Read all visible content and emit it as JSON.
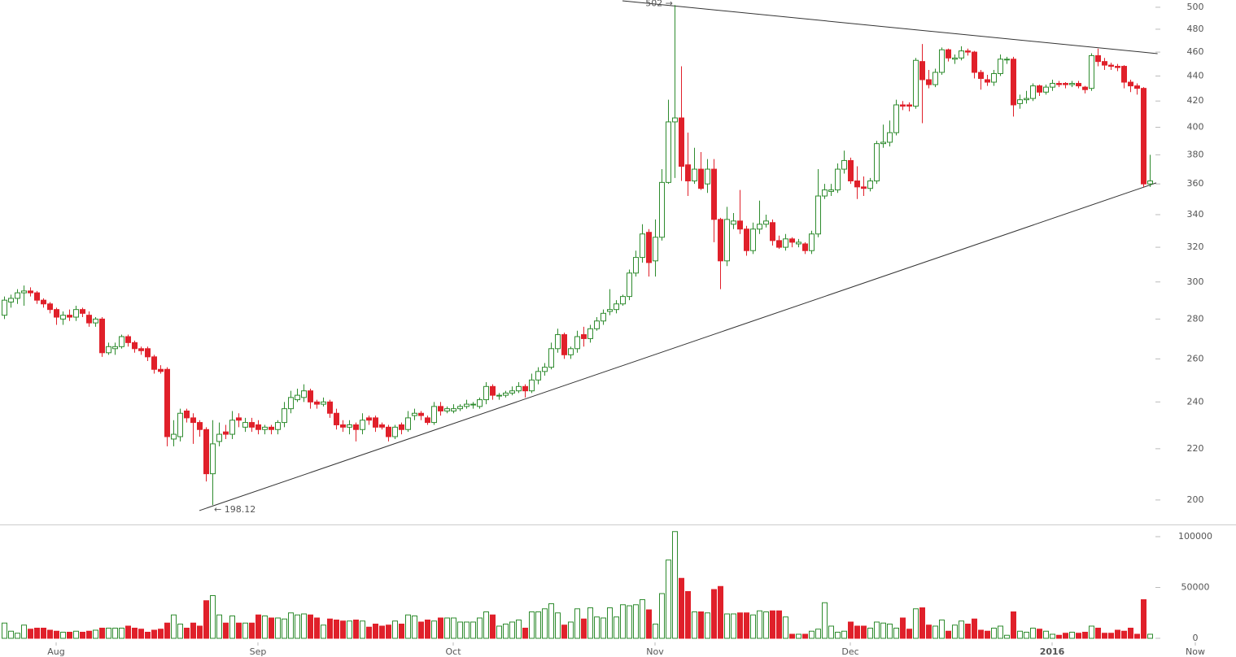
{
  "chart_data": {
    "type": "candlestick",
    "log": true,
    "ylim": [
      191.1,
      506.8
    ],
    "yticks": [
      200,
      220,
      240,
      260,
      280,
      300,
      320,
      340,
      360,
      380,
      400,
      420,
      440,
      460,
      480,
      500
    ],
    "xlim": [
      -0.625,
      176.875
    ],
    "xticks": [
      {
        "value": 8,
        "label": "Aug"
      },
      {
        "value": 39,
        "label": "Sep"
      },
      {
        "value": 69,
        "label": "Oct"
      },
      {
        "value": 100,
        "label": "Nov"
      },
      {
        "value": 130,
        "label": "Dec"
      },
      {
        "value": 161,
        "label": "2016"
      },
      {
        "value": 183,
        "label": "Now"
      }
    ],
    "up_color": "#2e8b2e",
    "down_color": "#e0202a",
    "open": [
      282,
      289,
      291,
      294,
      295,
      294,
      290,
      288,
      285,
      280,
      282,
      281,
      285,
      282,
      278,
      280,
      263,
      265,
      266,
      271,
      268,
      265,
      265,
      261,
      255,
      255,
      224,
      225,
      236,
      233,
      231,
      228,
      210,
      223,
      227,
      226,
      233,
      229,
      231,
      230,
      228,
      229,
      228,
      231,
      237,
      241,
      242,
      245,
      240,
      239,
      240,
      235,
      230,
      229,
      230,
      228,
      233,
      233,
      230,
      229,
      225,
      230,
      228,
      234,
      235,
      233,
      231,
      238,
      236,
      236,
      237,
      238,
      239,
      238,
      241,
      247,
      243,
      243,
      244,
      245,
      247,
      245,
      250,
      254,
      256,
      265,
      272,
      262,
      265,
      272,
      270,
      275,
      279,
      284,
      285,
      288,
      292,
      305,
      314,
      329,
      312,
      326,
      361,
      404,
      407,
      373,
      362,
      370,
      360,
      370,
      337,
      312,
      334,
      336,
      331,
      318,
      331,
      334,
      335,
      324,
      320,
      325,
      322,
      322,
      318,
      328,
      352,
      355,
      356,
      370,
      376,
      362,
      358,
      357,
      362,
      388,
      389,
      396,
      417,
      417,
      416,
      452,
      437,
      433,
      443,
      462,
      454,
      455,
      461,
      460,
      443,
      437,
      435,
      442,
      454,
      454,
      418,
      421,
      422,
      432,
      427,
      431,
      434,
      434,
      433,
      434,
      431,
      430,
      457,
      452,
      449,
      448,
      448,
      435,
      432,
      430,
      360
    ],
    "high": [
      292,
      293,
      296,
      298,
      297,
      295,
      291,
      289,
      286,
      284,
      285,
      287,
      286,
      284,
      281,
      281,
      268,
      268,
      272,
      272,
      269,
      266,
      266,
      262,
      257,
      256,
      232,
      237,
      237,
      235,
      232,
      229,
      232,
      231,
      230,
      236,
      235,
      233,
      233,
      232,
      230,
      230,
      232,
      240,
      245,
      246,
      248,
      246,
      241,
      242,
      241,
      237,
      232,
      232,
      231,
      235,
      234,
      234,
      231,
      230,
      230,
      231,
      236,
      237,
      236,
      234,
      240,
      240,
      238,
      239,
      239,
      241,
      240,
      242,
      249,
      248,
      244,
      245,
      247,
      249,
      248,
      253,
      256,
      258,
      268,
      275,
      273,
      266,
      274,
      276,
      277,
      281,
      285,
      296,
      290,
      293,
      307,
      318,
      334,
      331,
      337,
      370,
      421,
      502,
      448,
      396,
      385,
      382,
      377,
      377,
      338,
      345,
      341,
      356,
      333,
      335,
      349,
      340,
      337,
      327,
      328,
      326,
      325,
      323,
      330,
      370,
      360,
      360,
      374,
      383,
      378,
      372,
      365,
      364,
      390,
      402,
      405,
      421,
      420,
      419,
      455,
      467,
      445,
      446,
      464,
      463,
      458,
      465,
      463,
      461,
      445,
      441,
      445,
      458,
      456,
      456,
      425,
      428,
      434,
      433,
      433,
      437,
      436,
      435,
      436,
      436,
      432,
      459,
      463,
      455,
      451,
      450,
      449,
      437,
      434,
      431,
      380
    ],
    "low": [
      280,
      286,
      288,
      287,
      292,
      288,
      286,
      283,
      277,
      277,
      279,
      279,
      281,
      276,
      276,
      261,
      262,
      262,
      265,
      266,
      263,
      262,
      259,
      253,
      253,
      221,
      221,
      223,
      231,
      222,
      225,
      207,
      198.12,
      221,
      224,
      224,
      229,
      227,
      227,
      226,
      226,
      226,
      226,
      229,
      235,
      240,
      240,
      237,
      237,
      238,
      233,
      228,
      227,
      226,
      223,
      226,
      230,
      227,
      228,
      223,
      224,
      226,
      227,
      232,
      232,
      230,
      230,
      234,
      235,
      235,
      236,
      237,
      237,
      237,
      239,
      241,
      241,
      242,
      243,
      244,
      242,
      244,
      248,
      252,
      255,
      263,
      260,
      260,
      263,
      266,
      268,
      274,
      277,
      282,
      283,
      287,
      290,
      303,
      311,
      303,
      303,
      324,
      360,
      364,
      362,
      352,
      360,
      356,
      354,
      323,
      296,
      309,
      331,
      328,
      315,
      316,
      328,
      332,
      321,
      319,
      318,
      320,
      320,
      316,
      316,
      326,
      350,
      352,
      354,
      367,
      360,
      350,
      352,
      355,
      360,
      385,
      386,
      394,
      413,
      412,
      414,
      403,
      430,
      431,
      441,
      452,
      450,
      453,
      457,
      438,
      429,
      432,
      432,
      440,
      450,
      408,
      414,
      418,
      420,
      424,
      425,
      428,
      431,
      430,
      431,
      430,
      426,
      428,
      448,
      445,
      445,
      444,
      430,
      427,
      425,
      358,
      358
    ],
    "close": [
      290,
      291,
      294,
      295,
      294,
      290,
      288,
      285,
      281,
      282,
      281,
      285,
      283,
      278,
      280,
      263,
      266,
      266,
      271,
      268,
      265,
      264,
      261,
      255,
      254,
      225,
      226,
      235,
      233,
      231,
      228,
      210,
      222,
      226,
      226,
      232,
      232,
      231,
      229,
      228,
      229,
      228,
      231,
      237,
      242,
      243,
      245,
      240,
      239,
      240,
      235,
      230,
      229,
      230,
      228,
      232,
      232,
      229,
      229,
      225,
      229,
      228,
      233,
      235,
      234,
      231,
      238,
      236,
      237,
      237,
      238,
      239,
      239,
      241,
      247,
      243,
      243,
      244,
      245,
      247,
      245,
      250,
      254,
      256,
      265,
      272,
      262,
      265,
      271,
      270,
      275,
      279,
      283,
      285,
      288,
      292,
      305,
      314,
      328,
      311,
      326,
      361,
      404,
      407,
      372,
      362,
      370,
      357,
      370,
      337,
      312,
      337,
      336,
      331,
      318,
      331,
      334,
      336,
      324,
      320,
      325,
      323,
      323,
      318,
      328,
      352,
      356,
      356,
      370,
      376,
      362,
      358,
      357,
      362,
      388,
      389,
      396,
      417,
      416,
      416,
      453,
      437,
      433,
      443,
      462,
      455,
      455,
      461,
      460,
      443,
      438,
      435,
      442,
      454,
      454,
      417,
      421,
      422,
      432,
      427,
      431,
      434,
      433,
      433,
      434,
      432,
      429,
      457,
      452,
      449,
      448,
      447,
      435,
      432,
      430,
      360,
      362
    ],
    "vylim": [
      -4000,
      109600
    ],
    "vyticks": [
      0,
      50000,
      100000
    ],
    "volume": [
      15000,
      7000,
      5000,
      13000,
      9000,
      10000,
      10000,
      8000,
      7000,
      6000,
      6000,
      7000,
      6000,
      7000,
      8000,
      10000,
      10000,
      10000,
      10000,
      12000,
      10000,
      9000,
      6000,
      8000,
      9000,
      15000,
      23000,
      14000,
      10000,
      15000,
      12000,
      37000,
      42000,
      23000,
      15000,
      22000,
      15000,
      15000,
      15000,
      23000,
      22000,
      20000,
      20000,
      19000,
      25000,
      23000,
      24000,
      23000,
      20000,
      13000,
      19000,
      18000,
      17000,
      17000,
      18000,
      17000,
      11000,
      14000,
      12000,
      13000,
      17000,
      14000,
      23000,
      22000,
      16000,
      18000,
      17000,
      20000,
      20000,
      20000,
      16000,
      16000,
      16000,
      20000,
      26000,
      23000,
      12000,
      14000,
      16000,
      18000,
      10000,
      26000,
      26000,
      29000,
      34000,
      25000,
      13000,
      16000,
      29000,
      19000,
      30000,
      21000,
      20000,
      30000,
      21000,
      33000,
      32000,
      33000,
      38000,
      28000,
      14000,
      44000,
      77000,
      105000,
      59000,
      46000,
      26000,
      26000,
      25000,
      48000,
      51000,
      24000,
      24000,
      25000,
      25000,
      23000,
      27000,
      26000,
      27000,
      27000,
      21000,
      4000,
      4000,
      4000,
      7000,
      9000,
      35000,
      12000,
      6000,
      7000,
      16000,
      12000,
      12000,
      10000,
      16000,
      15000,
      14000,
      10000,
      20000,
      9000,
      29000,
      30000,
      13000,
      12000,
      18000,
      7000,
      13000,
      17000,
      14000,
      19000,
      8000,
      7000,
      10000,
      12000,
      3000,
      26000,
      7000,
      6000,
      10000,
      9000,
      7000,
      4000,
      3000,
      5000,
      6000,
      5000,
      6000,
      12000,
      10000,
      5000,
      5000,
      8000,
      7000,
      10000,
      4000,
      38000,
      4000
    ],
    "annotations": [
      {
        "text": "502 →",
        "x": 103,
        "y": 502,
        "anchor": "end"
      },
      {
        "text": "← 198.12",
        "x": 32,
        "y": 198.12,
        "anchor": "start"
      }
    ],
    "trendlines": [
      {
        "x": [
          95,
          177.2
        ],
        "y": [
          506,
          458.7
        ]
      },
      {
        "x": [
          30,
          177
        ],
        "y": [
          196.1,
          360.7
        ]
      }
    ]
  }
}
